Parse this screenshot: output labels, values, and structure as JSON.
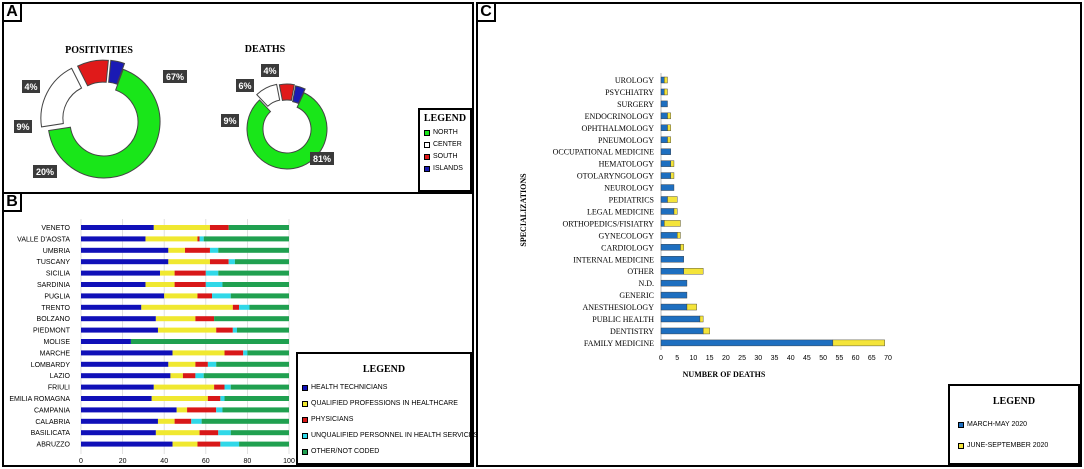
{
  "panels": {
    "a": "A",
    "b": "B",
    "c": "C"
  },
  "colors": {
    "north": "#19e619",
    "center": "#ffffff",
    "south": "#e01a1a",
    "islands": "#1a1ab4",
    "health_technicians": "#1010b8",
    "qualified_professions": "#f0e830",
    "physicians": "#d81818",
    "unqualified_personnel": "#30d8e8",
    "other": "#20a050",
    "march_may": "#1e6fc0",
    "june_sept": "#f4e43a"
  },
  "chart_data": [
    {
      "type": "pie",
      "title": "POSITIVITIES",
      "categories": [
        "NORTH",
        "CENTER",
        "SOUTH",
        "ISLANDS"
      ],
      "values": [
        67,
        20,
        9,
        4
      ],
      "labels": [
        "67%",
        "20%",
        "9%",
        "4%"
      ]
    },
    {
      "type": "pie",
      "title": "DEATHS",
      "categories": [
        "NORTH",
        "CENTER",
        "SOUTH",
        "ISLANDS"
      ],
      "values": [
        81,
        9,
        6,
        4
      ],
      "labels": [
        "81%",
        "9%",
        "6%",
        "4%"
      ]
    },
    {
      "type": "bar",
      "orientation": "horizontal",
      "stacked": true,
      "categories": [
        "VENETO",
        "VALLE D'AOSTA",
        "UMBRIA",
        "TUSCANY",
        "SICILIA",
        "SARDINIA",
        "PUGLIA",
        "TRENTO",
        "BOLZANO",
        "PIEDMONT",
        "MOLISE",
        "MARCHE",
        "LOMBARDY",
        "LAZIO",
        "FRIULI",
        "EMILIA ROMAGNA",
        "CAMPANIA",
        "CALABRIA",
        "BASILICATA",
        "ABRUZZO"
      ],
      "series": [
        {
          "name": "HEALTH TECHNICIANS",
          "values": [
            35,
            31,
            42,
            42,
            38,
            31,
            40,
            29,
            36,
            37,
            24,
            44,
            42,
            43,
            35,
            34,
            46,
            37,
            36,
            44
          ]
        },
        {
          "name": "QUALIFIED PROFESSIONS IN HEALTHCARE",
          "values": [
            27,
            25,
            8,
            20,
            7,
            14,
            16,
            44,
            19,
            28,
            0,
            25,
            13,
            6,
            29,
            27,
            5,
            8,
            21,
            12
          ]
        },
        {
          "name": "PHYSICIANS",
          "values": [
            9,
            1,
            12,
            9,
            15,
            15,
            7,
            3,
            9,
            8,
            0,
            9,
            6,
            6,
            5,
            6,
            14,
            8,
            9,
            11
          ]
        },
        {
          "name": "UNQUALIFIED PERSONNEL IN HEALTH SERVICES",
          "values": [
            0,
            2,
            4,
            3,
            6,
            8,
            9,
            5,
            0,
            2,
            0,
            2,
            4,
            4,
            3,
            2,
            3,
            5,
            6,
            9
          ]
        },
        {
          "name": "OTHER/NOT CODED",
          "values": [
            29,
            41,
            34,
            26,
            34,
            32,
            28,
            19,
            36,
            25,
            76,
            20,
            35,
            41,
            28,
            31,
            32,
            42,
            28,
            24
          ]
        }
      ],
      "xlim": [
        0,
        100
      ],
      "xticks": [
        "0",
        "20",
        "40",
        "60",
        "80",
        "100"
      ]
    },
    {
      "type": "bar",
      "orientation": "horizontal",
      "stacked": true,
      "categories": [
        "UROLOGY",
        "PSYCHIATRY",
        "SURGERY",
        "ENDOCRINOLOGY",
        "OPHTHALMOLOGY",
        "PNEUMOLOGY",
        "OCCUPATIONAL MEDICINE",
        "HEMATOLOGY",
        "OTOLARYNGOLOGY",
        "NEUROLOGY",
        "PEDIATRICS",
        "LEGAL MEDICINE",
        "ORTHOPEDICS/FISIATRY",
        "GYNECOLOGY",
        "CARDIOLOGY",
        "INTERNAL MEDICINE",
        "OTHER",
        "N.D.",
        "GENERIC",
        "ANESTHESIOLOGY",
        "PUBLIC HEALTH",
        "DENTISTRY",
        "FAMILY MEDICINE"
      ],
      "series": [
        {
          "name": "MARCH-MAY 2020",
          "values": [
            1,
            1,
            2,
            2,
            2,
            2,
            3,
            3,
            3,
            4,
            2,
            4,
            1,
            5,
            6,
            7,
            7,
            8,
            8,
            8,
            12,
            13,
            53
          ]
        },
        {
          "name": "JUNE-SEPTEMBER 2020",
          "values": [
            1,
            1,
            0,
            1,
            1,
            1,
            0,
            1,
            1,
            0,
            3,
            1,
            5,
            1,
            1,
            0,
            6,
            0,
            0,
            3,
            1,
            2,
            16
          ]
        }
      ],
      "ylabel": "SPECIALIZATIONS",
      "xlabel": "NUMBER OF DEATHS",
      "xlim": [
        0,
        70
      ],
      "xticks": [
        "0",
        "5",
        "10",
        "15",
        "20",
        "25",
        "30",
        "35",
        "40",
        "45",
        "50",
        "55",
        "60",
        "65",
        "70"
      ]
    }
  ],
  "legend_a": {
    "title": "LEGEND",
    "items": [
      "NORTH",
      "CENTER",
      "SOUTH",
      "ISLANDS"
    ]
  },
  "legend_b": {
    "title": "LEGEND",
    "items": [
      "HEALTH TECHNICIANS",
      "QUALIFIED PROFESSIONS IN HEALTHCARE",
      "PHYSICIANS",
      "UNQUALIFIED PERSONNEL IN HEALTH SERVICES",
      "OTHER/NOT CODED"
    ]
  },
  "legend_c": {
    "title": "LEGEND",
    "items": [
      "MARCH-MAY 2020",
      "JUNE-SEPTEMBER 2020"
    ]
  }
}
